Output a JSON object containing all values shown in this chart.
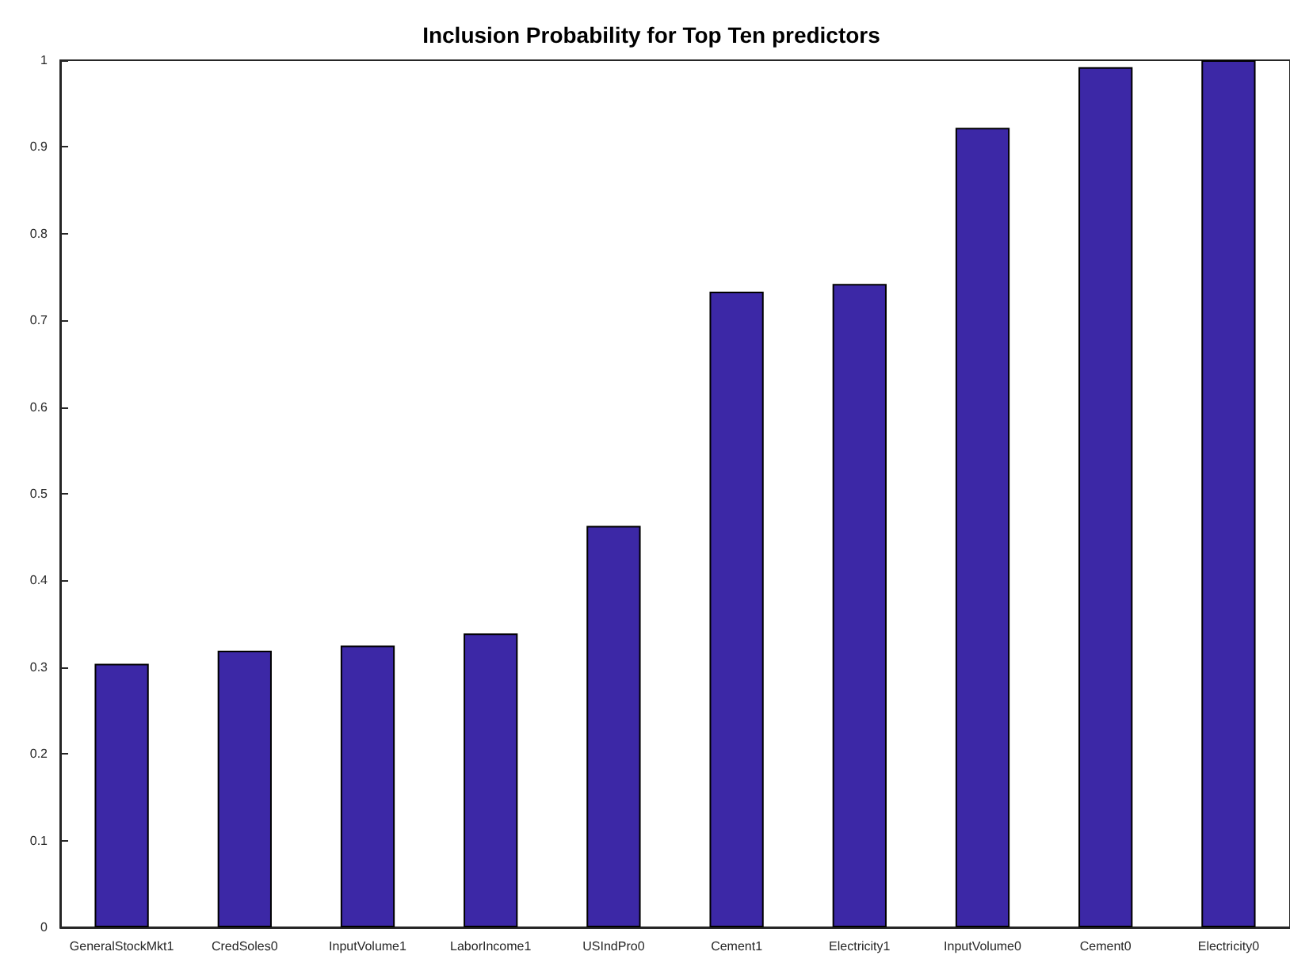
{
  "chart_data": {
    "type": "bar",
    "title": "Inclusion Probability for Top Ten predictors",
    "categories": [
      "GeneralStockMkt1",
      "CredSoles0",
      "InputVolume1",
      "LaborIncome1",
      "USIndPro0",
      "Cement1",
      "Electricity1",
      "InputVolume0",
      "Cement0",
      "Electricity0"
    ],
    "values": [
      0.304,
      0.319,
      0.325,
      0.339,
      0.463,
      0.733,
      0.742,
      0.922,
      0.992,
      1
    ],
    "color": "#3c28a6",
    "ylim": [
      0,
      1
    ],
    "yticks": [
      0,
      0.1,
      0.2,
      0.3,
      0.4,
      0.5,
      0.6,
      0.7,
      0.8,
      0.9,
      1
    ],
    "grid": false
  }
}
